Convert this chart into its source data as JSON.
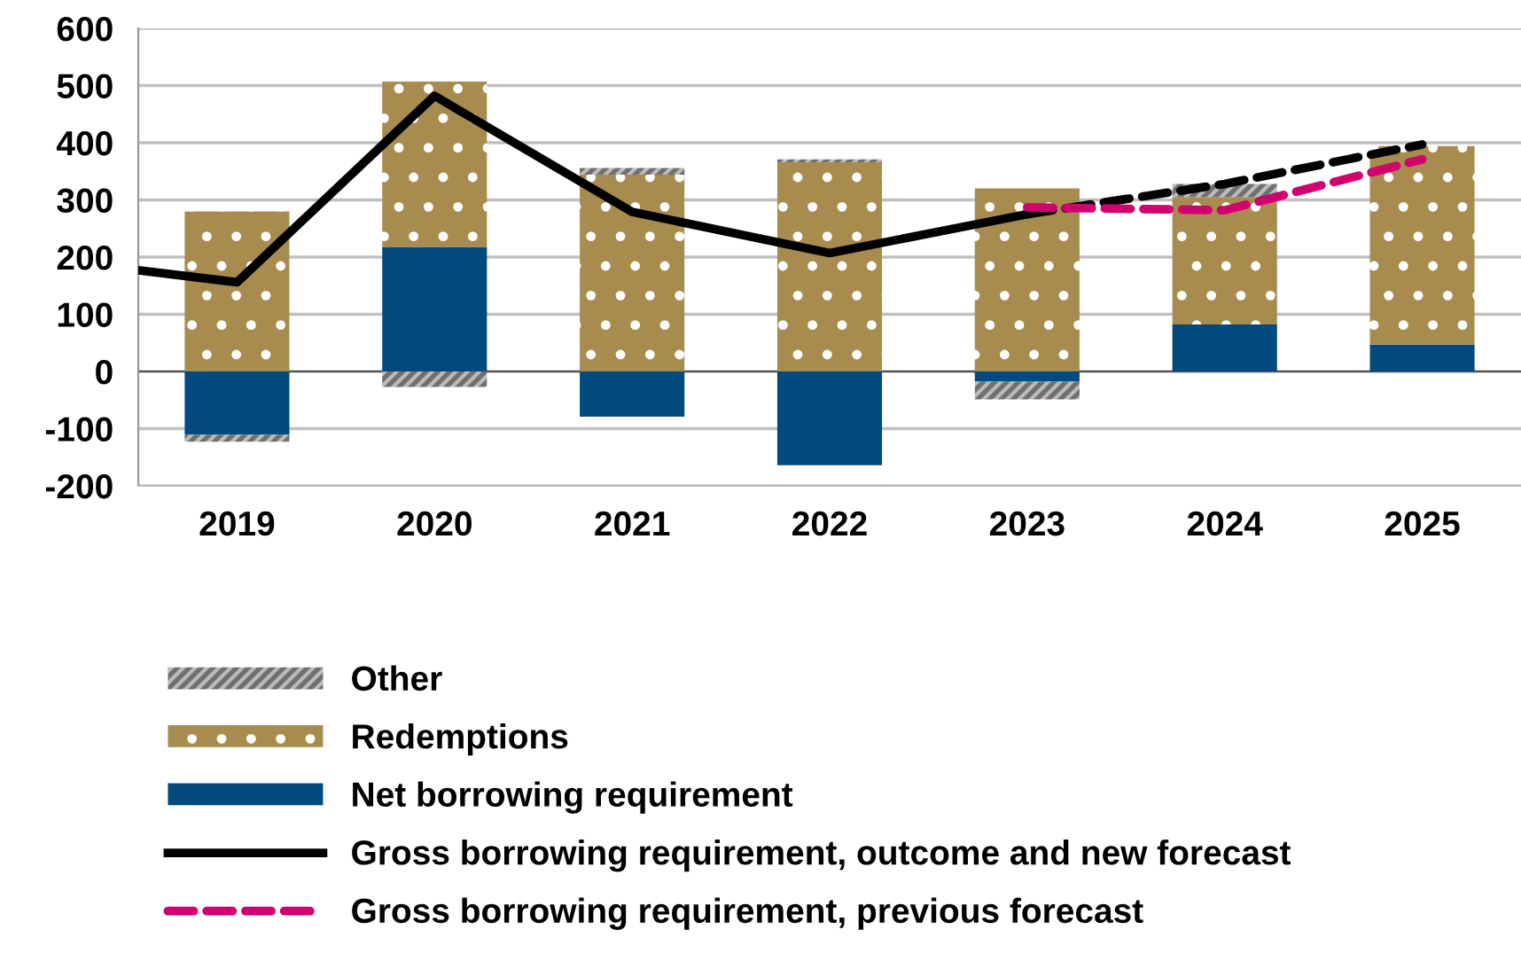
{
  "chart_data": {
    "type": "bar",
    "stacked": true,
    "x": [
      2019,
      2020,
      2021,
      2022,
      2023,
      2024,
      2025
    ],
    "xlim": [
      2018.5,
      2025.5
    ],
    "xticks": [
      2019,
      2020,
      2021,
      2022,
      2023,
      2024,
      2025
    ],
    "ylim": [
      -200,
      600
    ],
    "yticks": [
      -200,
      -100,
      0,
      100,
      200,
      300,
      400,
      500,
      600
    ],
    "grid": "y",
    "legend": "bottom",
    "series": [
      {
        "name": "Net borrowing requirement",
        "color": "#004a7f",
        "values": [
          -111,
          218,
          -79,
          -164,
          -18,
          82,
          47
        ]
      },
      {
        "name": "Redemptions",
        "color": "#a88c4f",
        "values": [
          280,
          289,
          344,
          366,
          320,
          223,
          347
        ]
      },
      {
        "name": "Other",
        "color": "#707070",
        "values": [
          -12,
          -27,
          12,
          5,
          -31,
          23,
          null
        ]
      },
      {
        "name": "Gross borrowing requirement, outcome and new forecast",
        "type": "line",
        "color": "#000000",
        "line_style": "solid",
        "x": [
          2018.5,
          2019,
          2020,
          2021,
          2022,
          2023
        ],
        "values": [
          177,
          156,
          482,
          279,
          207,
          275
        ]
      },
      {
        "type": "line",
        "color": "#000000",
        "line_style": "dashed",
        "x": [
          2023,
          2024,
          2025
        ],
        "values": [
          275,
          328,
          397
        ]
      },
      {
        "name": "Gross borrowing requirement, previous forecast",
        "type": "line",
        "color": "#d0006f",
        "line_style": "dashed",
        "x": [
          2023,
          2024,
          2025
        ],
        "values": [
          287,
          282,
          371
        ]
      }
    ]
  }
}
